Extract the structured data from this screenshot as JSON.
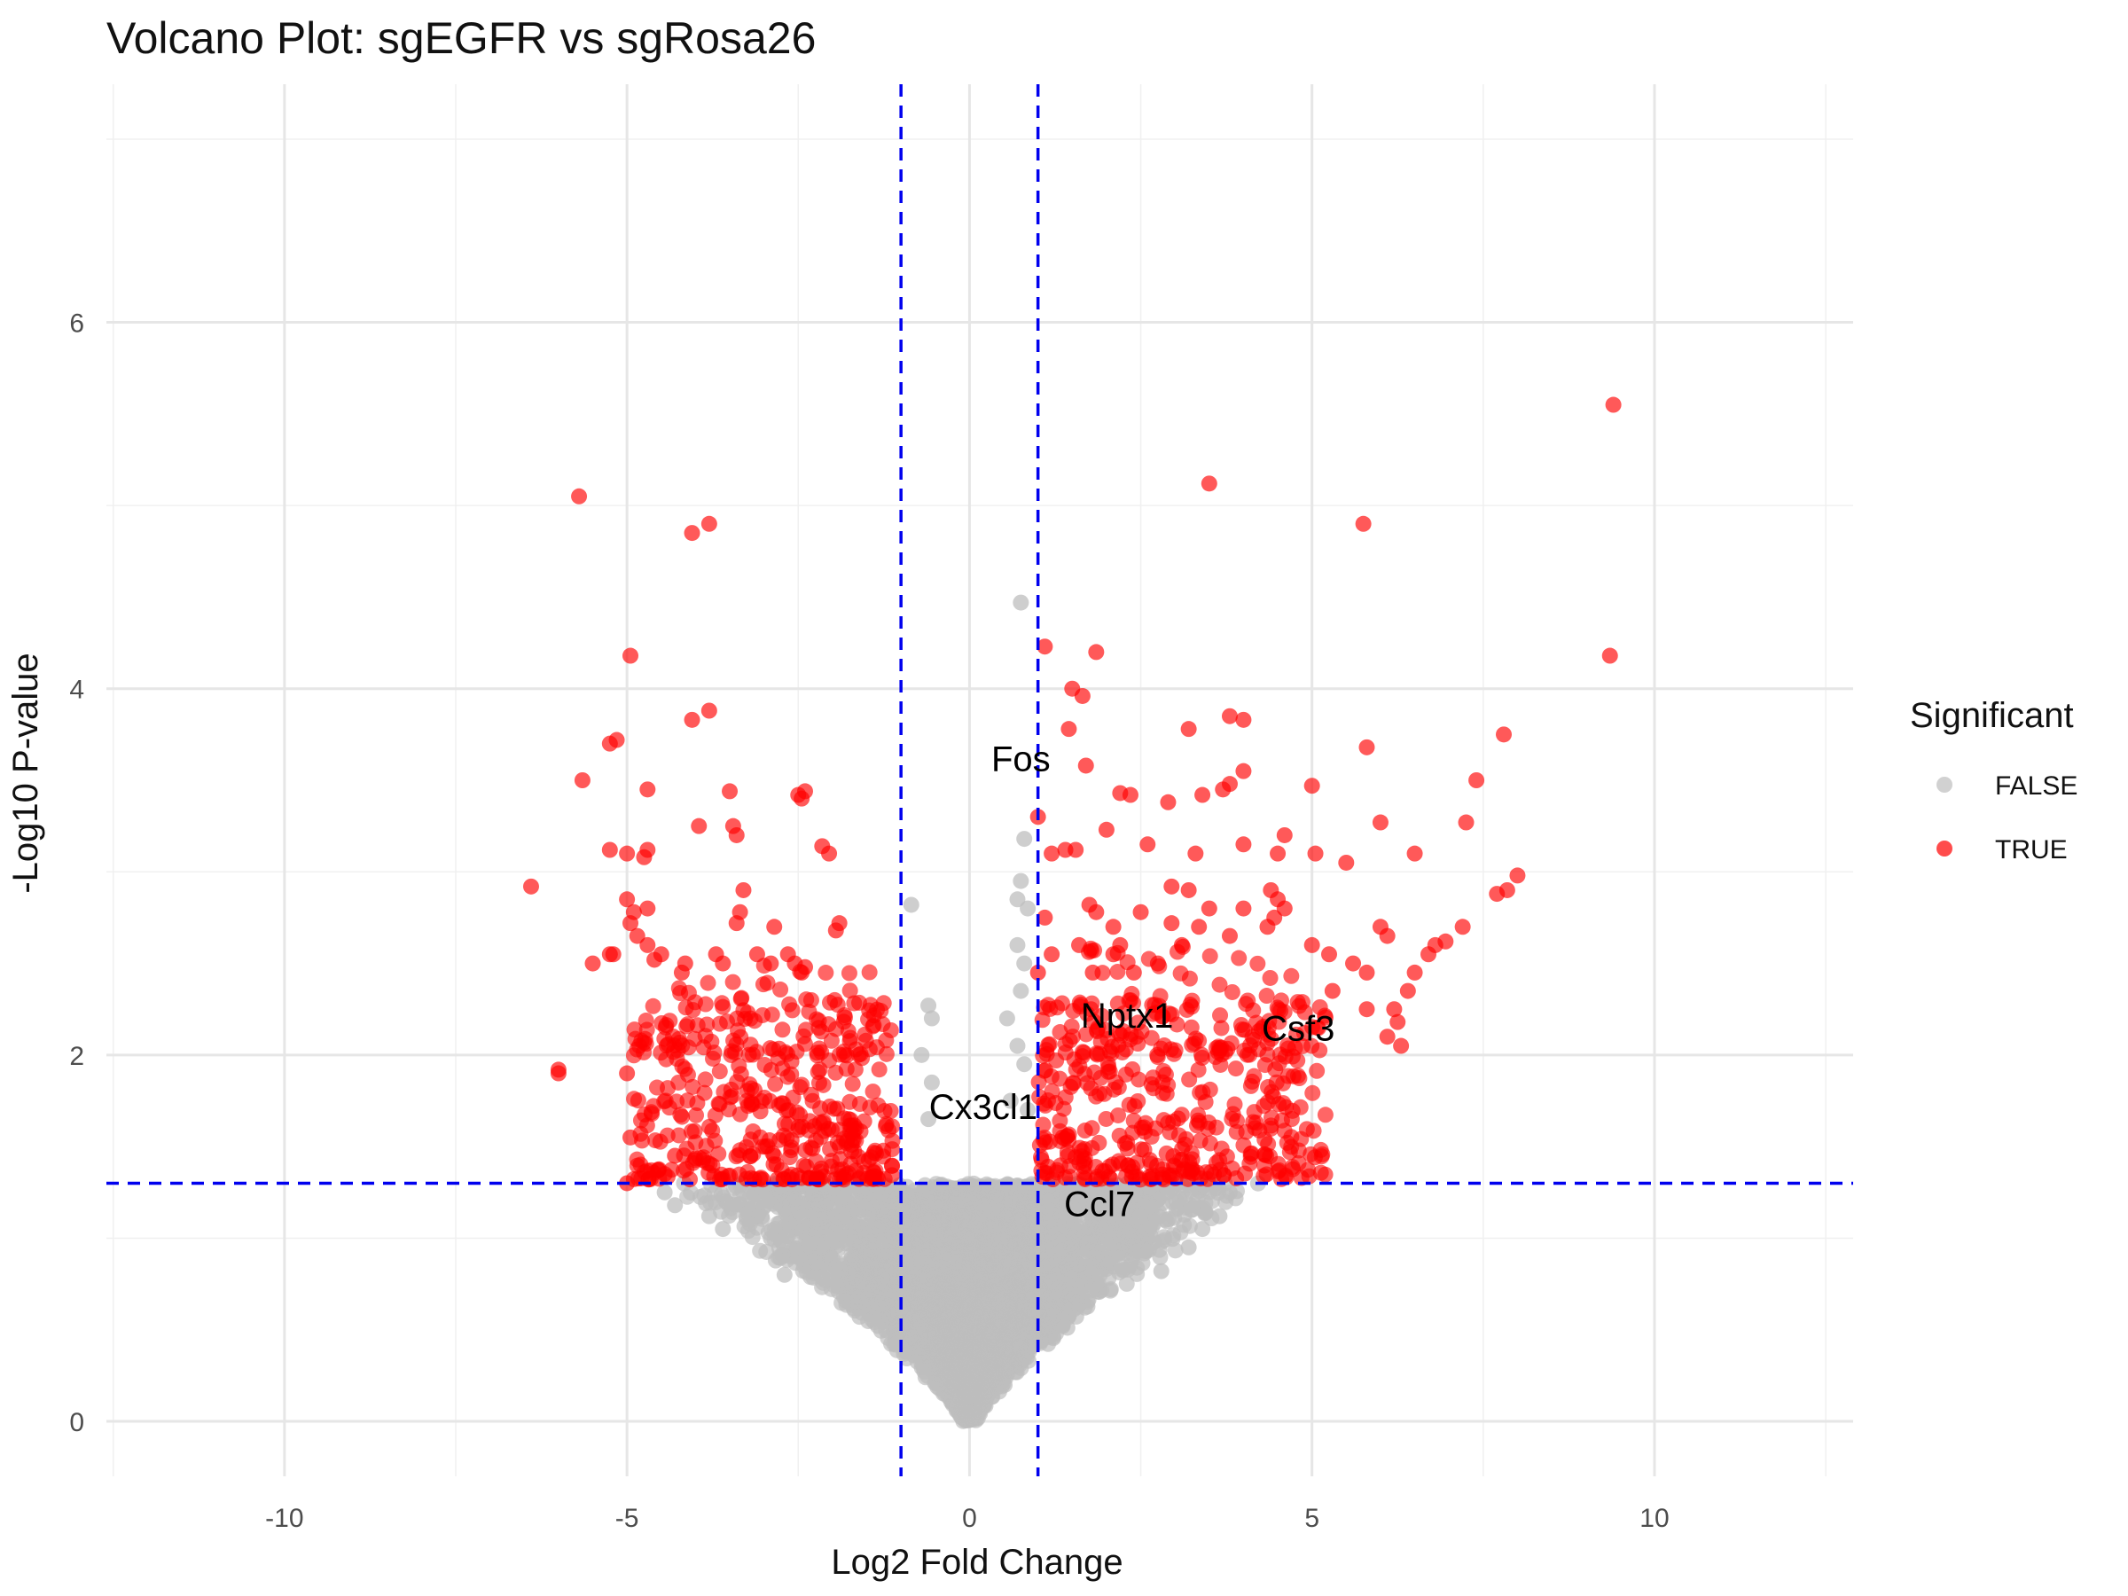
{
  "chart_data": {
    "type": "scatter",
    "title": "Volcano Plot: sgEGFR vs sgRosa26",
    "xlabel": "Log2 Fold Change",
    "ylabel": "-Log10 P-value",
    "xlim": [
      -12.6,
      12.9
    ],
    "ylim": [
      -0.3,
      7.3
    ],
    "x_ticks": [
      -10,
      -5,
      0,
      5,
      10
    ],
    "x_tick_labels": [
      "-10",
      "-5",
      "0",
      "5",
      "10"
    ],
    "y_ticks": [
      0,
      2,
      4,
      6
    ],
    "y_tick_labels": [
      "0",
      "2",
      "4",
      "6"
    ],
    "grid": true,
    "thresholds": {
      "log2fc": [
        -1,
        1
      ],
      "neg_log10_p": 1.3,
      "color": "#0000ee",
      "style": "dashed"
    },
    "legend": {
      "title": "Significant",
      "placement": "right",
      "entries": [
        {
          "label": "FALSE",
          "color": "#bdbdbd"
        },
        {
          "label": "TRUE",
          "color": "#ff0000"
        }
      ]
    },
    "gene_labels": [
      {
        "text": "Fos",
        "x": 0.75,
        "y": 3.55
      },
      {
        "text": "Nptx1",
        "x": 2.3,
        "y": 2.15
      },
      {
        "text": "Csf3",
        "x": 4.8,
        "y": 2.08
      },
      {
        "text": "Cx3cl1",
        "x": 0.2,
        "y": 1.65
      },
      {
        "text": "Ccl7",
        "x": 1.9,
        "y": 1.12
      }
    ],
    "series": [
      {
        "name": "TRUE",
        "color": "#ff0000",
        "points": [
          [
            9.4,
            5.55
          ],
          [
            9.35,
            4.18
          ],
          [
            3.5,
            5.12
          ],
          [
            5.75,
            4.9
          ],
          [
            -5.7,
            5.05
          ],
          [
            -3.8,
            4.9
          ],
          [
            -4.05,
            4.85
          ],
          [
            -4.95,
            4.18
          ],
          [
            1.1,
            4.23
          ],
          [
            1.85,
            4.2
          ],
          [
            1.5,
            4.0
          ],
          [
            1.65,
            3.96
          ],
          [
            3.8,
            3.85
          ],
          [
            4.0,
            3.83
          ],
          [
            3.2,
            3.78
          ],
          [
            1.45,
            3.78
          ],
          [
            -3.8,
            3.88
          ],
          [
            -4.05,
            3.83
          ],
          [
            -5.15,
            3.72
          ],
          [
            -5.25,
            3.7
          ],
          [
            -5.65,
            3.5
          ],
          [
            -4.7,
            3.45
          ],
          [
            -3.5,
            3.44
          ],
          [
            -2.4,
            3.44
          ],
          [
            -2.5,
            3.42
          ],
          [
            -2.45,
            3.4
          ],
          [
            7.8,
            3.75
          ],
          [
            7.4,
            3.5
          ],
          [
            5.8,
            3.68
          ],
          [
            5.0,
            3.47
          ],
          [
            4.0,
            3.55
          ],
          [
            3.7,
            3.45
          ],
          [
            2.35,
            3.42
          ],
          [
            2.2,
            3.43
          ],
          [
            2.9,
            3.38
          ],
          [
            3.4,
            3.42
          ],
          [
            3.8,
            3.48
          ],
          [
            1.7,
            3.58
          ],
          [
            1.0,
            3.3
          ],
          [
            -3.95,
            3.25
          ],
          [
            -3.45,
            3.25
          ],
          [
            -3.4,
            3.2
          ],
          [
            6.0,
            3.27
          ],
          [
            7.25,
            3.27
          ],
          [
            4.6,
            3.2
          ],
          [
            2.0,
            3.23
          ],
          [
            1.4,
            3.12
          ],
          [
            1.55,
            3.12
          ],
          [
            1.2,
            3.1
          ],
          [
            2.6,
            3.15
          ],
          [
            3.3,
            3.1
          ],
          [
            4.0,
            3.15
          ],
          [
            5.05,
            3.1
          ],
          [
            5.5,
            3.05
          ],
          [
            6.5,
            3.1
          ],
          [
            4.5,
            3.1
          ],
          [
            -5.25,
            3.12
          ],
          [
            -5.0,
            3.1
          ],
          [
            -4.7,
            3.12
          ],
          [
            -4.75,
            3.08
          ],
          [
            -2.15,
            3.14
          ],
          [
            -2.05,
            3.1
          ],
          [
            -6.4,
            2.92
          ],
          [
            -3.3,
            2.9
          ],
          [
            -5.0,
            2.85
          ],
          [
            -4.9,
            2.78
          ],
          [
            -4.7,
            2.8
          ],
          [
            -3.35,
            2.78
          ],
          [
            -3.4,
            2.72
          ],
          [
            -2.85,
            2.7
          ],
          [
            -1.9,
            2.72
          ],
          [
            -1.95,
            2.68
          ],
          [
            -4.95,
            2.72
          ],
          [
            -4.85,
            2.65
          ],
          [
            -4.7,
            2.6
          ],
          [
            -5.2,
            2.55
          ],
          [
            -5.25,
            2.55
          ],
          [
            -5.5,
            2.5
          ],
          [
            -4.5,
            2.55
          ],
          [
            -4.6,
            2.52
          ],
          [
            -4.2,
            2.45
          ],
          [
            -4.15,
            2.5
          ],
          [
            -3.7,
            2.55
          ],
          [
            -3.6,
            2.5
          ],
          [
            -3.1,
            2.55
          ],
          [
            -2.9,
            2.5
          ],
          [
            -2.65,
            2.55
          ],
          [
            -2.55,
            2.5
          ],
          [
            -2.4,
            2.48
          ],
          [
            -2.45,
            2.45
          ],
          [
            8.0,
            2.98
          ],
          [
            7.85,
            2.9
          ],
          [
            7.7,
            2.88
          ],
          [
            7.2,
            2.7
          ],
          [
            6.8,
            2.6
          ],
          [
            6.95,
            2.62
          ],
          [
            6.7,
            2.55
          ],
          [
            6.5,
            2.45
          ],
          [
            6.4,
            2.35
          ],
          [
            6.2,
            2.25
          ],
          [
            6.25,
            2.18
          ],
          [
            6.1,
            2.1
          ],
          [
            6.3,
            2.05
          ],
          [
            4.4,
            2.9
          ],
          [
            4.5,
            2.85
          ],
          [
            4.45,
            2.75
          ],
          [
            4.6,
            2.8
          ],
          [
            4.35,
            2.7
          ],
          [
            4.0,
            2.8
          ],
          [
            3.5,
            2.8
          ],
          [
            3.35,
            2.7
          ],
          [
            3.1,
            2.6
          ],
          [
            2.75,
            2.5
          ],
          [
            2.4,
            2.45
          ],
          [
            2.2,
            2.6
          ],
          [
            2.1,
            2.55
          ],
          [
            1.8,
            2.45
          ],
          [
            1.6,
            2.6
          ],
          [
            1.2,
            2.55
          ],
          [
            1.1,
            2.75
          ],
          [
            1.0,
            2.45
          ],
          [
            5.0,
            2.6
          ],
          [
            5.25,
            2.55
          ],
          [
            5.6,
            2.5
          ],
          [
            5.8,
            2.45
          ],
          [
            6.1,
            2.65
          ],
          [
            6.0,
            2.7
          ],
          [
            5.8,
            2.25
          ],
          [
            5.3,
            2.35
          ],
          [
            2.95,
            2.92
          ],
          [
            3.2,
            2.9
          ],
          [
            2.1,
            2.7
          ],
          [
            1.75,
            2.82
          ],
          [
            1.85,
            2.78
          ],
          [
            2.5,
            2.78
          ],
          [
            2.95,
            2.72
          ],
          [
            3.8,
            2.65
          ],
          [
            -6.0,
            1.92
          ],
          [
            -6.0,
            1.9
          ],
          [
            -4.95,
            1.55
          ],
          [
            -5.0,
            1.9
          ],
          [
            -4.3,
            1.45
          ],
          [
            -4.45,
            1.35
          ],
          [
            -5.0,
            1.3
          ]
        ],
        "clusters": [
          {
            "x": [
              -4.9,
              -1.1
            ],
            "y": [
              1.32,
              2.3
            ],
            "n": 380,
            "floor": 1.3
          },
          {
            "x": [
              -4.5,
              -1.2
            ],
            "y": [
              2.0,
              2.5
            ],
            "n": 60,
            "floor": 1.3
          },
          {
            "x": [
              1.0,
              5.2
            ],
            "y": [
              1.32,
              2.3
            ],
            "n": 400,
            "floor": 1.3
          },
          {
            "x": [
              1.5,
              4.8
            ],
            "y": [
              2.0,
              2.6
            ],
            "n": 70,
            "floor": 1.3
          }
        ]
      },
      {
        "name": "FALSE",
        "color": "#bdbdbd",
        "points": [
          [
            0.75,
            4.47
          ],
          [
            0.8,
            3.18
          ],
          [
            0.75,
            2.95
          ],
          [
            0.7,
            2.85
          ],
          [
            0.85,
            2.8
          ],
          [
            -0.85,
            2.82
          ],
          [
            0.7,
            2.6
          ],
          [
            0.8,
            2.5
          ],
          [
            0.75,
            2.35
          ],
          [
            -0.6,
            2.27
          ],
          [
            -0.55,
            2.2
          ],
          [
            0.55,
            2.2
          ],
          [
            0.7,
            2.05
          ],
          [
            -0.7,
            2.0
          ],
          [
            0.8,
            1.95
          ],
          [
            -0.55,
            1.85
          ],
          [
            0.6,
            1.75
          ],
          [
            0.85,
            1.7
          ],
          [
            -0.6,
            1.65
          ],
          [
            -4.45,
            1.25
          ],
          [
            -4.3,
            1.18
          ],
          [
            -3.8,
            1.12
          ],
          [
            -3.6,
            1.05
          ],
          [
            -2.9,
            1.0
          ],
          [
            3.8,
            1.25
          ],
          [
            3.65,
            1.12
          ],
          [
            3.4,
            1.05
          ],
          [
            3.2,
            0.95
          ],
          [
            2.8,
            0.82
          ],
          [
            -2.7,
            0.8
          ]
        ],
        "volcano_body": {
          "n": 4200,
          "apex": [
            0,
            0.0
          ],
          "y_max": 1.3,
          "half_width_at_top": 4.6
        }
      }
    ]
  }
}
